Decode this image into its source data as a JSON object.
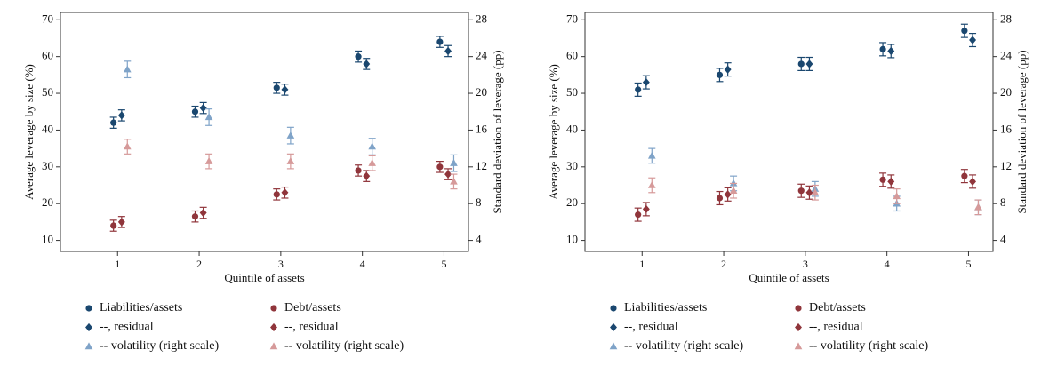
{
  "chart_data": [
    {
      "type": "scatter",
      "x_label": "Quintile of assets",
      "y_label": "Average leverage by size (%)",
      "y2_label": "Standard deviation of leverage (pp)",
      "x": [
        1,
        2,
        3,
        4,
        5
      ],
      "xlim": [
        0.3,
        5.3
      ],
      "xticks": [
        1,
        2,
        3,
        4,
        5
      ],
      "ylim": [
        7,
        72
      ],
      "yticks": [
        10,
        20,
        30,
        40,
        50,
        60,
        70
      ],
      "y2lim": [
        2.8,
        28.8
      ],
      "y2ticks": [
        4,
        8,
        12,
        16,
        20,
        24,
        28
      ],
      "series": [
        {
          "name": "Liabilities/assets",
          "color": "#1a476f",
          "marker": "circle",
          "values": [
            42,
            45,
            51.5,
            60,
            64
          ],
          "errors": [
            1.5,
            1.5,
            1.5,
            1.5,
            1.5
          ]
        },
        {
          "name": "Debt/assets",
          "color": "#90353b",
          "marker": "circle",
          "values": [
            14,
            16.5,
            22.5,
            29,
            30
          ],
          "errors": [
            1.5,
            1.5,
            1.5,
            1.5,
            1.5
          ]
        },
        {
          "name": "--, residual",
          "color": "#1a476f",
          "marker": "diamond",
          "values": [
            44,
            46,
            51,
            58,
            61.5
          ],
          "errors": [
            1.5,
            1.5,
            1.5,
            1.5,
            1.5
          ]
        },
        {
          "name": "--, residual",
          "color": "#90353b",
          "marker": "diamond",
          "values": [
            15,
            17.5,
            23,
            27.5,
            28
          ],
          "errors": [
            1.5,
            1.5,
            1.5,
            1.5,
            1.5
          ]
        },
        {
          "name": "-- volatility (right scale)",
          "color": "#7fa3c8",
          "marker": "triangle",
          "axis": "y2",
          "values": [
            22.6,
            17.4,
            15.4,
            14.2,
            12.4
          ],
          "errors": [
            0.9,
            0.9,
            0.9,
            0.9,
            0.9
          ]
        },
        {
          "name": "-- volatility (right scale)",
          "color": "#d69a9a",
          "marker": "triangle",
          "axis": "y2",
          "values": [
            14.2,
            12.6,
            12.6,
            12.4,
            10.4
          ],
          "errors": [
            0.8,
            0.8,
            0.8,
            0.8,
            0.8
          ]
        }
      ]
    },
    {
      "type": "scatter",
      "x_label": "Quintile of assets",
      "y_label": "Average leverage by size (%)",
      "y2_label": "Standard deviation of leverage (pp)",
      "x": [
        1,
        2,
        3,
        4,
        5
      ],
      "xlim": [
        0.3,
        5.3
      ],
      "xticks": [
        1,
        2,
        3,
        4,
        5
      ],
      "ylim": [
        7,
        72
      ],
      "yticks": [
        10,
        20,
        30,
        40,
        50,
        60,
        70
      ],
      "y2lim": [
        2.8,
        28.8
      ],
      "y2ticks": [
        4,
        8,
        12,
        16,
        20,
        24,
        28
      ],
      "series": [
        {
          "name": "Liabilities/assets",
          "color": "#1a476f",
          "marker": "circle",
          "values": [
            51,
            55,
            58,
            62,
            67
          ],
          "errors": [
            1.8,
            1.8,
            1.8,
            1.8,
            1.8
          ]
        },
        {
          "name": "Debt/assets",
          "color": "#90353b",
          "marker": "circle",
          "values": [
            17,
            21.5,
            23.5,
            26.5,
            27.5
          ],
          "errors": [
            1.8,
            1.8,
            1.8,
            1.8,
            1.8
          ]
        },
        {
          "name": "--, residual",
          "color": "#1a476f",
          "marker": "diamond",
          "values": [
            53,
            56.5,
            58,
            61.5,
            64.5
          ],
          "errors": [
            1.8,
            1.8,
            1.8,
            1.8,
            1.8
          ]
        },
        {
          "name": "--, residual",
          "color": "#90353b",
          "marker": "diamond",
          "values": [
            18.5,
            22.5,
            23,
            26,
            26
          ],
          "errors": [
            1.8,
            1.8,
            1.8,
            1.8,
            1.8
          ]
        },
        {
          "name": "-- volatility (right scale)",
          "color": "#7fa3c8",
          "marker": "triangle",
          "axis": "y2",
          "values": [
            13.2,
            10.2,
            9.6,
            8.0,
            7.6
          ],
          "errors": [
            0.8,
            0.8,
            0.8,
            0.8,
            0.8
          ]
        },
        {
          "name": "-- volatility (right scale)",
          "color": "#d69a9a",
          "marker": "triangle",
          "axis": "y2",
          "values": [
            10.0,
            9.4,
            9.2,
            8.8,
            7.6
          ],
          "errors": [
            0.8,
            0.8,
            0.8,
            0.8,
            0.8
          ]
        }
      ]
    }
  ]
}
